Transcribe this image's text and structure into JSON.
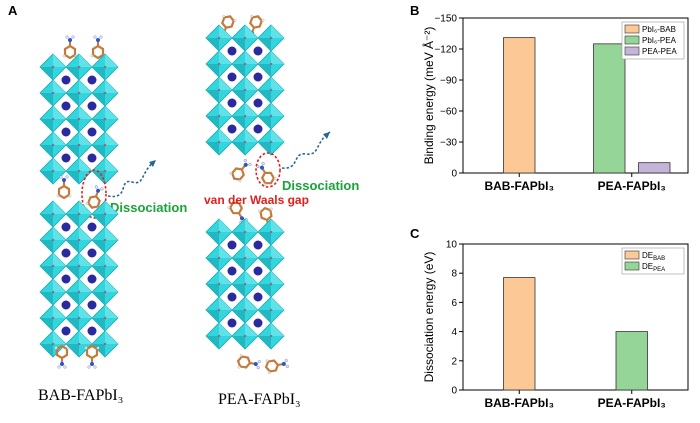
{
  "panels": {
    "a": {
      "letter": "A",
      "left_label": "BAB-FAPbI₃",
      "right_label": "PEA-FAPbI₃",
      "dissociation_left": "Dissociation",
      "dissociation_right": "Dissociation",
      "vdw_gap": "van der Waals gap"
    },
    "b": {
      "letter": "B"
    },
    "c": {
      "letter": "C"
    }
  },
  "colors": {
    "octahedron": "#33d6dd",
    "octahedron_edge": "#1fa7ae",
    "cation": "#2a2a9e",
    "bar_orange": "#fbc896",
    "bar_green": "#95d597",
    "bar_purple": "#c3b4d8",
    "dissociation_green": "#1aa33a",
    "dash_red": "#e0201c",
    "arrow_blue": "#23679a"
  },
  "chart_data": [
    {
      "type": "bar",
      "ylabel": "Binding energy (meV Å⁻²)",
      "ylim": [
        0,
        -150
      ],
      "yticks": [
        0,
        -30,
        -60,
        -90,
        -120,
        -150
      ],
      "categories": [
        "BAB-FAPbI₃",
        "PEA-FAPbI₃"
      ],
      "legend_position": "top-right",
      "series": [
        {
          "name": "PbI₆-BAB",
          "category": "BAB-FAPbI₃",
          "value": -131,
          "color": "#fbc896"
        },
        {
          "name": "PbI₆-PEA",
          "category": "PEA-FAPbI₃",
          "value": -125,
          "color": "#95d597"
        },
        {
          "name": "PEA-PEA",
          "category": "PEA-FAPbI₃",
          "value": -10,
          "color": "#c3b4d8"
        }
      ]
    },
    {
      "type": "bar",
      "ylabel": "Dissociation energy (eV)",
      "ylim": [
        0,
        10
      ],
      "yticks": [
        0,
        2,
        4,
        6,
        8,
        10
      ],
      "categories": [
        "BAB-FAPbI₃",
        "PEA-FAPbI₃"
      ],
      "legend_position": "top-right",
      "series": [
        {
          "name": "DE",
          "sub": "BAB",
          "category": "BAB-FAPbI₃",
          "value": 7.7,
          "color": "#fbc896"
        },
        {
          "name": "DE",
          "sub": "PEA",
          "category": "PEA-FAPbI₃",
          "value": 4.0,
          "color": "#95d597"
        }
      ]
    }
  ]
}
